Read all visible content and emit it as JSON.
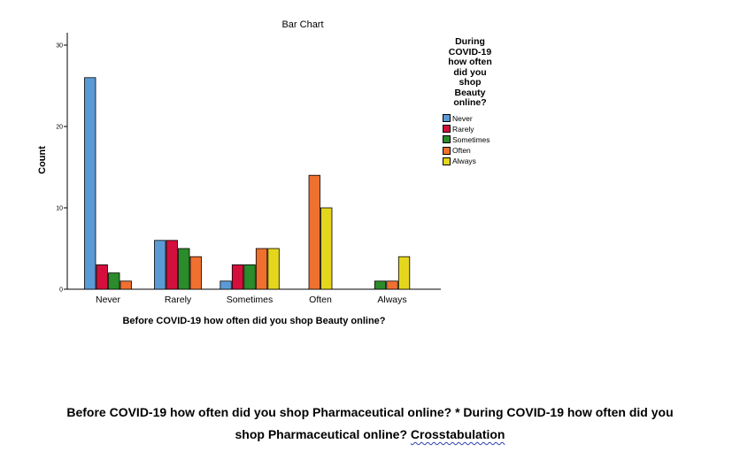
{
  "chart_data": {
    "type": "bar",
    "title": "Bar Chart",
    "xlabel": "Before COVID-19 how often did you shop Beauty online?",
    "ylabel": "Count",
    "ylim": [
      0,
      32
    ],
    "yticks": [
      0,
      10,
      20,
      30
    ],
    "grid": false,
    "legend_position": "right",
    "legend_title": "During COVID-19 how often did you shop Beauty online?",
    "categories": [
      "Never",
      "Rarely",
      "Sometimes",
      "Often",
      "Always"
    ],
    "series": [
      {
        "name": "Never",
        "color": "#5b9bd5",
        "values": [
          26,
          6,
          1,
          null,
          null
        ]
      },
      {
        "name": "Rarely",
        "color": "#d40f3c",
        "values": [
          3,
          6,
          3,
          null,
          null
        ]
      },
      {
        "name": "Sometimes",
        "color": "#2a8c2a",
        "values": [
          2,
          5,
          3,
          null,
          1
        ]
      },
      {
        "name": "Often",
        "color": "#f07030",
        "values": [
          1,
          4,
          5,
          14,
          1
        ]
      },
      {
        "name": "Always",
        "color": "#e4d61c",
        "values": [
          null,
          null,
          5,
          10,
          4
        ]
      }
    ]
  },
  "legend": {
    "title_lines": [
      "During",
      "COVID-19",
      "how often",
      "did you",
      "shop",
      "Beauty",
      "online?"
    ]
  },
  "footer": {
    "line1": "Before COVID-19 how often did you shop Pharmaceutical online? * During COVID-19 how often did you",
    "line2_before": "shop Pharmaceutical online? ",
    "line2_underlined": "Crosstabulation"
  }
}
